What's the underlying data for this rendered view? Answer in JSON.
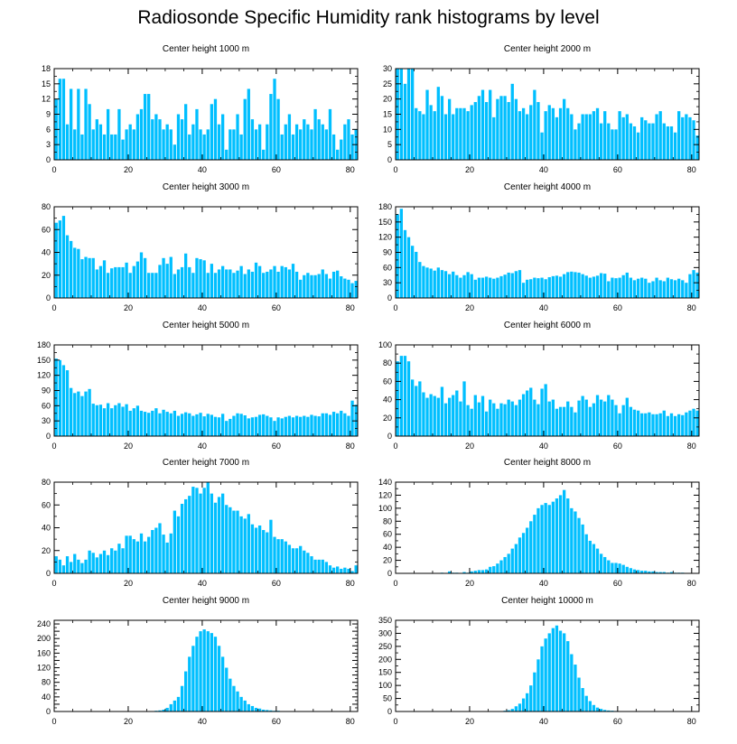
{
  "title": "Radiosonde Specific Humidity rank histograms by level",
  "bar_color": "#00BFFF",
  "chart_data": [
    {
      "type": "bar",
      "title": "Center height 1000 m",
      "xlim": [
        0,
        82
      ],
      "ylim": [
        0,
        18
      ],
      "xticks": [
        0,
        20,
        40,
        60,
        80
      ],
      "yticks": [
        0,
        3,
        6,
        9,
        12,
        15,
        18
      ],
      "categories_start": 0,
      "values": [
        12,
        16,
        16,
        7,
        14,
        6,
        14,
        5,
        14,
        11,
        6,
        8,
        7,
        5,
        10,
        5,
        5,
        10,
        4,
        6,
        7,
        6,
        9,
        10,
        13,
        13,
        8,
        9,
        8,
        6,
        7,
        6,
        3,
        9,
        8,
        11,
        5,
        7,
        10,
        6,
        5,
        6,
        11,
        12,
        7,
        9,
        2,
        6,
        6,
        9,
        5,
        12,
        14,
        8,
        6,
        7,
        2,
        7,
        13,
        16,
        12,
        5,
        7,
        9,
        5,
        7,
        6,
        8,
        7,
        6,
        10,
        8,
        7,
        6,
        10,
        5,
        2,
        4,
        7,
        8,
        5,
        6
      ]
    },
    {
      "type": "bar",
      "title": "Center height 2000 m",
      "xlim": [
        0,
        82
      ],
      "ylim": [
        0,
        30
      ],
      "xticks": [
        0,
        20,
        40,
        60,
        80
      ],
      "yticks": [
        0,
        5,
        10,
        15,
        20,
        25,
        30
      ],
      "categories_start": 0,
      "values": [
        30,
        30,
        25,
        30,
        30,
        17,
        16,
        15,
        23,
        18,
        16,
        24,
        21,
        15,
        20,
        15,
        17,
        17,
        17,
        16,
        18,
        19,
        21,
        23,
        19,
        23,
        14,
        20,
        21,
        21,
        19,
        25,
        20,
        16,
        17,
        15,
        18,
        23,
        19,
        9,
        16,
        18,
        17,
        14,
        17,
        20,
        17,
        15,
        10,
        12,
        15,
        15,
        15,
        16,
        17,
        12,
        16,
        12,
        10,
        10,
        16,
        14,
        15,
        12,
        11,
        9,
        14,
        13,
        12,
        12,
        15,
        16,
        12,
        11,
        11,
        9,
        16,
        14,
        15,
        14,
        13,
        8
      ]
    },
    {
      "type": "bar",
      "title": "Center height 3000 m",
      "xlim": [
        0,
        82
      ],
      "ylim": [
        0,
        80
      ],
      "xticks": [
        0,
        20,
        40,
        60,
        80
      ],
      "yticks": [
        0,
        20,
        40,
        60,
        80
      ],
      "categories_start": 0,
      "values": [
        66,
        68,
        72,
        55,
        50,
        44,
        43,
        34,
        36,
        35,
        35,
        25,
        28,
        33,
        22,
        26,
        27,
        27,
        27,
        31,
        22,
        28,
        32,
        40,
        35,
        22,
        22,
        22,
        29,
        35,
        30,
        36,
        21,
        25,
        27,
        39,
        27,
        22,
        35,
        34,
        33,
        22,
        30,
        22,
        25,
        28,
        25,
        25,
        22,
        24,
        28,
        21,
        25,
        23,
        31,
        28,
        22,
        23,
        25,
        28,
        23,
        28,
        27,
        25,
        30,
        23,
        16,
        20,
        22,
        20,
        20,
        21,
        25,
        21,
        17,
        23,
        24,
        19,
        17,
        16,
        13,
        15
      ]
    },
    {
      "type": "bar",
      "title": "Center height 4000 m",
      "xlim": [
        0,
        82
      ],
      "ylim": [
        0,
        180
      ],
      "xticks": [
        0,
        20,
        40,
        60,
        80
      ],
      "yticks": [
        0,
        30,
        60,
        90,
        120,
        150,
        180
      ],
      "categories_start": 0,
      "values": [
        165,
        176,
        134,
        120,
        103,
        91,
        71,
        63,
        60,
        58,
        54,
        60,
        55,
        53,
        47,
        52,
        45,
        40,
        45,
        51,
        47,
        36,
        40,
        40,
        42,
        40,
        38,
        40,
        43,
        46,
        50,
        49,
        53,
        55,
        30,
        36,
        37,
        40,
        39,
        40,
        37,
        41,
        43,
        44,
        42,
        47,
        51,
        52,
        51,
        50,
        47,
        44,
        40,
        42,
        44,
        49,
        48,
        33,
        40,
        39,
        40,
        45,
        50,
        40,
        35,
        38,
        40,
        38,
        30,
        33,
        40,
        35,
        33,
        40,
        37,
        35,
        38,
        35,
        30,
        47,
        55,
        50
      ]
    },
    {
      "type": "bar",
      "title": "Center height 5000 m",
      "xlim": [
        0,
        82
      ],
      "ylim": [
        0,
        180
      ],
      "xticks": [
        0,
        20,
        40,
        60,
        80
      ],
      "yticks": [
        0,
        30,
        60,
        90,
        120,
        150,
        180
      ],
      "categories_start": 0,
      "values": [
        153,
        150,
        140,
        130,
        95,
        85,
        88,
        79,
        88,
        93,
        64,
        61,
        62,
        55,
        65,
        55,
        61,
        65,
        58,
        63,
        50,
        55,
        60,
        50,
        48,
        46,
        50,
        55,
        45,
        52,
        48,
        45,
        50,
        40,
        44,
        47,
        45,
        40,
        43,
        46,
        39,
        44,
        42,
        38,
        37,
        44,
        30,
        34,
        40,
        45,
        44,
        41,
        35,
        37,
        38,
        42,
        43,
        40,
        37,
        30,
        37,
        35,
        38,
        40,
        37,
        40,
        38,
        40,
        38,
        42,
        40,
        39,
        45,
        45,
        42,
        48,
        45,
        50,
        45,
        40,
        70,
        62
      ]
    },
    {
      "type": "bar",
      "title": "Center height 6000 m",
      "xlim": [
        0,
        82
      ],
      "ylim": [
        0,
        100
      ],
      "xticks": [
        0,
        20,
        40,
        60,
        80
      ],
      "yticks": [
        0,
        20,
        40,
        60,
        80,
        100
      ],
      "categories_start": 0,
      "values": [
        82,
        88,
        88,
        82,
        62,
        55,
        60,
        48,
        42,
        46,
        44,
        42,
        54,
        36,
        42,
        45,
        50,
        38,
        60,
        34,
        30,
        45,
        37,
        44,
        27,
        40,
        36,
        30,
        36,
        35,
        40,
        38,
        34,
        40,
        46,
        50,
        53,
        40,
        35,
        52,
        57,
        38,
        40,
        30,
        32,
        32,
        38,
        32,
        26,
        39,
        44,
        40,
        32,
        36,
        45,
        40,
        38,
        45,
        40,
        34,
        25,
        34,
        42,
        32,
        29,
        28,
        25,
        25,
        26,
        24,
        24,
        25,
        28,
        22,
        25,
        22,
        24,
        23,
        26,
        28,
        30,
        28
      ]
    },
    {
      "type": "bar",
      "title": "Center height 7000 m",
      "xlim": [
        0,
        82
      ],
      "ylim": [
        0,
        80
      ],
      "xticks": [
        0,
        20,
        40,
        60,
        80
      ],
      "yticks": [
        0,
        20,
        40,
        60,
        80
      ],
      "categories_start": 0,
      "values": [
        15,
        12,
        7,
        15,
        10,
        17,
        12,
        9,
        12,
        20,
        18,
        14,
        17,
        20,
        16,
        22,
        20,
        26,
        22,
        33,
        33,
        30,
        28,
        35,
        28,
        32,
        38,
        40,
        44,
        34,
        27,
        35,
        55,
        50,
        61,
        65,
        68,
        76,
        75,
        70,
        75,
        80,
        70,
        62,
        67,
        70,
        60,
        58,
        55,
        55,
        50,
        48,
        52,
        43,
        40,
        42,
        38,
        36,
        47,
        32,
        30,
        30,
        28,
        25,
        22,
        22,
        24,
        20,
        18,
        15,
        12,
        12,
        12,
        10,
        7,
        5,
        6,
        4,
        5,
        4,
        2,
        7
      ]
    },
    {
      "type": "bar",
      "title": "Center height 8000 m",
      "xlim": [
        0,
        82
      ],
      "ylim": [
        0,
        140
      ],
      "xticks": [
        0,
        20,
        40,
        60,
        80
      ],
      "yticks": [
        0,
        20,
        40,
        60,
        80,
        100,
        120,
        140
      ],
      "categories_start": 0,
      "values": [
        0,
        0,
        0,
        0,
        0,
        0,
        0,
        0,
        0,
        0,
        0,
        0,
        1,
        0,
        3,
        1,
        1,
        0,
        2,
        1,
        3,
        4,
        5,
        5,
        6,
        10,
        11,
        15,
        20,
        25,
        30,
        38,
        45,
        55,
        62,
        70,
        80,
        90,
        100,
        105,
        108,
        105,
        110,
        115,
        120,
        128,
        115,
        100,
        95,
        85,
        75,
        60,
        50,
        45,
        38,
        30,
        25,
        20,
        16,
        16,
        15,
        13,
        10,
        8,
        6,
        5,
        4,
        4,
        3,
        3,
        2,
        2,
        2,
        1,
        2,
        1,
        1,
        1,
        0,
        0,
        0,
        0
      ]
    },
    {
      "type": "bar",
      "title": "Center height 9000 m",
      "xlim": [
        0,
        82
      ],
      "ylim": [
        0,
        250
      ],
      "xticks": [
        0,
        20,
        40,
        60,
        80
      ],
      "yticks": [
        0,
        20,
        40,
        60,
        80,
        100,
        120,
        140,
        160,
        180,
        200,
        220,
        240
      ],
      "ytick_labels": [
        0,
        40,
        80,
        120,
        160,
        200,
        240
      ],
      "categories_start": 0,
      "values": [
        0,
        0,
        0,
        0,
        0,
        0,
        0,
        0,
        0,
        0,
        0,
        0,
        0,
        0,
        0,
        0,
        0,
        0,
        0,
        0,
        0,
        0,
        0,
        0,
        0,
        1,
        1,
        2,
        3,
        5,
        10,
        20,
        30,
        40,
        70,
        110,
        150,
        180,
        205,
        220,
        225,
        220,
        215,
        205,
        180,
        150,
        120,
        90,
        70,
        55,
        40,
        30,
        20,
        15,
        10,
        8,
        5,
        4,
        3,
        2,
        2,
        1,
        1,
        1,
        0,
        0,
        0,
        0,
        0,
        0,
        0,
        0,
        0,
        0,
        0,
        0,
        0,
        0,
        0,
        0,
        0,
        0
      ]
    },
    {
      "type": "bar",
      "title": "Center height 10000 m",
      "xlim": [
        0,
        82
      ],
      "ylim": [
        0,
        350
      ],
      "xticks": [
        0,
        20,
        40,
        60,
        80
      ],
      "yticks": [
        0,
        50,
        100,
        150,
        200,
        250,
        300,
        350
      ],
      "categories_start": 0,
      "values": [
        0,
        0,
        0,
        0,
        0,
        0,
        0,
        0,
        0,
        0,
        0,
        0,
        0,
        0,
        0,
        0,
        0,
        0,
        0,
        0,
        0,
        0,
        0,
        0,
        0,
        0,
        0,
        1,
        1,
        3,
        5,
        10,
        20,
        30,
        50,
        70,
        100,
        150,
        200,
        250,
        280,
        300,
        320,
        330,
        310,
        300,
        270,
        220,
        180,
        130,
        90,
        60,
        40,
        25,
        15,
        10,
        6,
        4,
        3,
        2,
        1,
        1,
        1,
        0,
        0,
        0,
        0,
        0,
        0,
        0,
        0,
        0,
        0,
        0,
        0,
        0,
        0,
        0,
        0,
        0,
        0,
        0
      ]
    }
  ]
}
